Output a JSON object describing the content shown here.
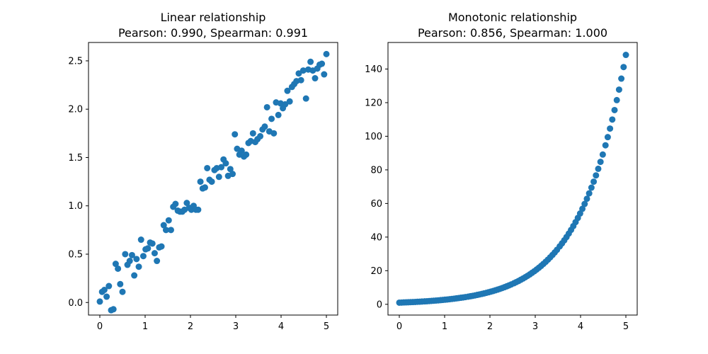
{
  "chart_data": [
    {
      "type": "scatter",
      "title_line1": "Linear relationship",
      "title_line2": "Pearson: 0.990, Spearman: 0.991",
      "xlabel": "",
      "ylabel": "",
      "xlim": [
        -0.25,
        5.25
      ],
      "ylim": [
        -0.13,
        2.69
      ],
      "xticks": [
        0,
        1,
        2,
        3,
        4,
        5
      ],
      "xtick_labels": [
        "0",
        "1",
        "2",
        "3",
        "4",
        "5"
      ],
      "yticks": [
        0.0,
        0.5,
        1.0,
        1.5,
        2.0,
        2.5
      ],
      "ytick_labels": [
        "0.0",
        "0.5",
        "1.0",
        "1.5",
        "2.0",
        "2.5"
      ],
      "grid": false,
      "series": [
        {
          "color": "#1f77b4",
          "points": [
            [
              0.0,
              0.01
            ],
            [
              0.05,
              0.11
            ],
            [
              0.1,
              0.13
            ],
            [
              0.15,
              0.06
            ],
            [
              0.2,
              0.17
            ],
            [
              0.25,
              -0.08
            ],
            [
              0.3,
              -0.07
            ],
            [
              0.35,
              0.4
            ],
            [
              0.4,
              0.35
            ],
            [
              0.45,
              0.19
            ],
            [
              0.5,
              0.11
            ],
            [
              0.56,
              0.5
            ],
            [
              0.61,
              0.39
            ],
            [
              0.66,
              0.43
            ],
            [
              0.71,
              0.49
            ],
            [
              0.76,
              0.28
            ],
            [
              0.81,
              0.45
            ],
            [
              0.86,
              0.37
            ],
            [
              0.91,
              0.65
            ],
            [
              0.96,
              0.48
            ],
            [
              1.01,
              0.55
            ],
            [
              1.06,
              0.56
            ],
            [
              1.11,
              0.62
            ],
            [
              1.16,
              0.61
            ],
            [
              1.21,
              0.51
            ],
            [
              1.26,
              0.43
            ],
            [
              1.31,
              0.57
            ],
            [
              1.36,
              0.58
            ],
            [
              1.41,
              0.8
            ],
            [
              1.46,
              0.75
            ],
            [
              1.52,
              0.85
            ],
            [
              1.57,
              0.75
            ],
            [
              1.62,
              0.99
            ],
            [
              1.67,
              1.02
            ],
            [
              1.72,
              0.95
            ],
            [
              1.77,
              0.94
            ],
            [
              1.82,
              0.94
            ],
            [
              1.87,
              0.96
            ],
            [
              1.92,
              1.03
            ],
            [
              1.97,
              0.98
            ],
            [
              2.02,
              0.96
            ],
            [
              2.07,
              1.0
            ],
            [
              2.12,
              0.96
            ],
            [
              2.17,
              0.96
            ],
            [
              2.22,
              1.25
            ],
            [
              2.27,
              1.18
            ],
            [
              2.32,
              1.19
            ],
            [
              2.37,
              1.39
            ],
            [
              2.42,
              1.27
            ],
            [
              2.47,
              1.25
            ],
            [
              2.53,
              1.37
            ],
            [
              2.58,
              1.39
            ],
            [
              2.63,
              1.3
            ],
            [
              2.68,
              1.4
            ],
            [
              2.73,
              1.48
            ],
            [
              2.78,
              1.44
            ],
            [
              2.83,
              1.31
            ],
            [
              2.88,
              1.38
            ],
            [
              2.93,
              1.33
            ],
            [
              2.98,
              1.74
            ],
            [
              3.03,
              1.59
            ],
            [
              3.08,
              1.53
            ],
            [
              3.13,
              1.57
            ],
            [
              3.18,
              1.51
            ],
            [
              3.23,
              1.53
            ],
            [
              3.28,
              1.65
            ],
            [
              3.33,
              1.67
            ],
            [
              3.38,
              1.75
            ],
            [
              3.43,
              1.66
            ],
            [
              3.48,
              1.69
            ],
            [
              3.54,
              1.72
            ],
            [
              3.59,
              1.79
            ],
            [
              3.64,
              1.82
            ],
            [
              3.69,
              2.02
            ],
            [
              3.74,
              1.77
            ],
            [
              3.79,
              1.9
            ],
            [
              3.84,
              1.75
            ],
            [
              3.89,
              2.07
            ],
            [
              3.94,
              1.94
            ],
            [
              3.99,
              2.06
            ],
            [
              4.04,
              2.01
            ],
            [
              4.09,
              2.05
            ],
            [
              4.14,
              2.19
            ],
            [
              4.19,
              2.08
            ],
            [
              4.24,
              2.23
            ],
            [
              4.29,
              2.26
            ],
            [
              4.34,
              2.29
            ],
            [
              4.39,
              2.37
            ],
            [
              4.44,
              2.3
            ],
            [
              4.49,
              2.4
            ],
            [
              4.55,
              2.11
            ],
            [
              4.6,
              2.41
            ],
            [
              4.65,
              2.49
            ],
            [
              4.7,
              2.4
            ],
            [
              4.75,
              2.32
            ],
            [
              4.8,
              2.42
            ],
            [
              4.85,
              2.46
            ],
            [
              4.9,
              2.47
            ],
            [
              4.95,
              2.36
            ],
            [
              5.0,
              2.57
            ]
          ]
        }
      ]
    },
    {
      "type": "scatter",
      "title_line1": "Monotonic relationship",
      "title_line2": "Pearson: 0.856, Spearman: 1.000",
      "xlabel": "",
      "ylabel": "",
      "xlim": [
        -0.25,
        5.25
      ],
      "ylim": [
        -6.4,
        155.8
      ],
      "xticks": [
        0,
        1,
        2,
        3,
        4,
        5
      ],
      "xtick_labels": [
        "0",
        "1",
        "2",
        "3",
        "4",
        "5"
      ],
      "yticks": [
        0,
        20,
        40,
        60,
        80,
        100,
        120,
        140
      ],
      "ytick_labels": [
        "0",
        "20",
        "40",
        "60",
        "80",
        "100",
        "120",
        "140"
      ],
      "grid": false,
      "series": [
        {
          "color": "#1f77b4",
          "formula_note": "",
          "points": [
            [
              0.0,
              1.0
            ],
            [
              0.05,
              1.05
            ],
            [
              0.1,
              1.11
            ],
            [
              0.15,
              1.16
            ],
            [
              0.2,
              1.22
            ],
            [
              0.25,
              1.29
            ],
            [
              0.3,
              1.35
            ],
            [
              0.35,
              1.42
            ],
            [
              0.4,
              1.5
            ],
            [
              0.45,
              1.57
            ],
            [
              0.5,
              1.65
            ],
            [
              0.56,
              1.75
            ],
            [
              0.61,
              1.84
            ],
            [
              0.66,
              1.94
            ],
            [
              0.71,
              2.03
            ],
            [
              0.76,
              2.14
            ],
            [
              0.81,
              2.25
            ],
            [
              0.86,
              2.36
            ],
            [
              0.91,
              2.48
            ],
            [
              0.96,
              2.61
            ],
            [
              1.01,
              2.75
            ],
            [
              1.06,
              2.89
            ],
            [
              1.11,
              3.03
            ],
            [
              1.16,
              3.19
            ],
            [
              1.21,
              3.35
            ],
            [
              1.26,
              3.53
            ],
            [
              1.31,
              3.71
            ],
            [
              1.36,
              3.9
            ],
            [
              1.41,
              4.1
            ],
            [
              1.46,
              4.31
            ],
            [
              1.52,
              4.57
            ],
            [
              1.57,
              4.81
            ],
            [
              1.62,
              5.05
            ],
            [
              1.67,
              5.31
            ],
            [
              1.72,
              5.58
            ],
            [
              1.77,
              5.87
            ],
            [
              1.82,
              6.17
            ],
            [
              1.87,
              6.49
            ],
            [
              1.92,
              6.82
            ],
            [
              1.97,
              7.17
            ],
            [
              2.02,
              7.54
            ],
            [
              2.07,
              7.92
            ],
            [
              2.12,
              8.33
            ],
            [
              2.17,
              8.76
            ],
            [
              2.22,
              9.21
            ],
            [
              2.27,
              9.68
            ],
            [
              2.32,
              10.18
            ],
            [
              2.37,
              10.7
            ],
            [
              2.42,
              11.25
            ],
            [
              2.47,
              11.82
            ],
            [
              2.53,
              12.55
            ],
            [
              2.58,
              13.2
            ],
            [
              2.63,
              13.87
            ],
            [
              2.68,
              14.59
            ],
            [
              2.73,
              15.33
            ],
            [
              2.78,
              16.12
            ],
            [
              2.83,
              16.95
            ],
            [
              2.88,
              17.81
            ],
            [
              2.93,
              18.73
            ],
            [
              2.98,
              19.69
            ],
            [
              3.03,
              20.7
            ],
            [
              3.08,
              21.76
            ],
            [
              3.13,
              22.87
            ],
            [
              3.18,
              24.05
            ],
            [
              3.23,
              25.28
            ],
            [
              3.28,
              26.58
            ],
            [
              3.33,
              27.94
            ],
            [
              3.38,
              29.37
            ],
            [
              3.43,
              30.88
            ],
            [
              3.48,
              32.46
            ],
            [
              3.54,
              34.47
            ],
            [
              3.59,
              36.23
            ],
            [
              3.64,
              38.09
            ],
            [
              3.69,
              40.04
            ],
            [
              3.74,
              42.1
            ],
            [
              3.79,
              44.26
            ],
            [
              3.84,
              46.53
            ],
            [
              3.89,
              48.91
            ],
            [
              3.94,
              51.42
            ],
            [
              3.99,
              54.05
            ],
            [
              4.04,
              56.83
            ],
            [
              4.09,
              59.74
            ],
            [
              4.14,
              62.8
            ],
            [
              4.19,
              66.02
            ],
            [
              4.24,
              69.41
            ],
            [
              4.29,
              72.97
            ],
            [
              4.34,
              76.71
            ],
            [
              4.39,
              80.64
            ],
            [
              4.44,
              84.77
            ],
            [
              4.49,
              89.12
            ],
            [
              4.55,
              94.63
            ],
            [
              4.6,
              99.48
            ],
            [
              4.65,
              104.58
            ],
            [
              4.7,
              109.95
            ],
            [
              4.75,
              115.58
            ],
            [
              4.8,
              121.51
            ],
            [
              4.85,
              127.74
            ],
            [
              4.9,
              134.29
            ],
            [
              4.95,
              141.17
            ],
            [
              5.0,
              148.41
            ]
          ]
        }
      ]
    }
  ]
}
